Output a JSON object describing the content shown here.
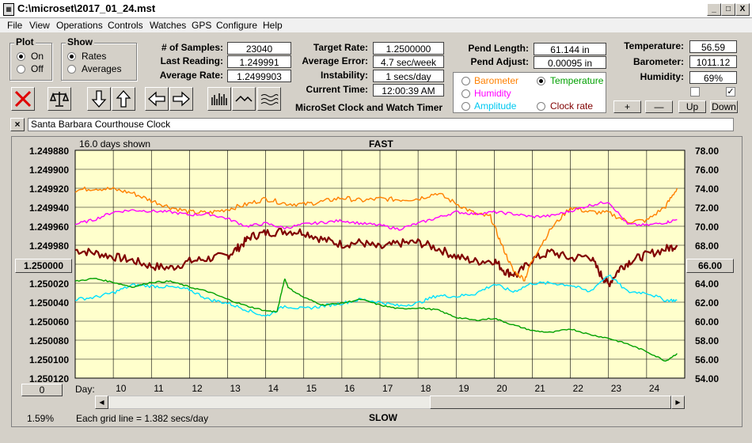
{
  "window": {
    "title": "C:\\microset\\2017_01_24.mst",
    "btn_min": "_",
    "btn_max": "□",
    "btn_close": "X"
  },
  "menu": [
    "File",
    "View",
    "Operations",
    "Controls",
    "Watches",
    "GPS",
    "Configure",
    "Help"
  ],
  "plot_group": {
    "title": "Plot",
    "on": "On",
    "off": "Off",
    "selected": "On"
  },
  "show_group": {
    "title": "Show",
    "rates": "Rates",
    "averages": "Averages",
    "selected": "Rates"
  },
  "stats": {
    "samples_label": "# of Samples:",
    "samples": "23040",
    "last_label": "Last Reading:",
    "last": "1.249991",
    "avg_rate_label": "Average Rate:",
    "avg_rate": "1.2499903",
    "target_label": "Target Rate:",
    "target": "1.2500000",
    "avg_err_label": "Average Error:",
    "avg_err": "4.7 sec/week",
    "instab_label": "Instability:",
    "instab": "1 secs/day",
    "time_label": "Current Time:",
    "time": "12:00:39 AM",
    "pend_len_label": "Pend Length:",
    "pend_len": "61.144 in",
    "pend_adj_label": "Pend Adjust:",
    "pend_adj": "0.00095 in",
    "temp_label": "Temperature:",
    "temp": "56.59",
    "baro_label": "Barometer:",
    "baro": "1011.12",
    "hum_label": "Humidity:",
    "hum": "69%"
  },
  "app_caption": "MicroSet Clock and Watch Timer",
  "sensor_choice": {
    "barometer": "Barometer",
    "temperature": "Temperature",
    "humidity": "Humidity",
    "amplitude": "Amplitude",
    "clock_rate": "Clock rate",
    "selected": "Temperature"
  },
  "small_buttons": {
    "plus": "+",
    "minus": "—",
    "up": "Up",
    "down": "Down"
  },
  "checkboxes": {
    "left_checked": false,
    "right_checked": true,
    "right_mark": "✓"
  },
  "clock_name": "Santa Barbara Courthouse Clock",
  "clock_close": "×",
  "chart_header": {
    "days_shown": "16.0 days shown",
    "top": "FAST",
    "bottom": "SLOW"
  },
  "left_button": "1.250000",
  "right_button": "66.00",
  "zero_button": "0",
  "footer": {
    "percent": "1.59%",
    "grid_note": "Each grid line = 1.382 secs/day",
    "day_label": "Day:"
  },
  "colors": {
    "plot_bg": "#ffffcc",
    "rate": "#800000",
    "temperature": "#ff8000",
    "humidity": "#ff00ff",
    "amplitude": "#00e0ff",
    "barometer": "#00a000"
  },
  "chart_data": {
    "type": "line",
    "x_axis": {
      "label": "Day:",
      "ticks": [
        10,
        11,
        12,
        13,
        14,
        15,
        16,
        17,
        18,
        19,
        20,
        21,
        22,
        23,
        24
      ],
      "range": [
        9,
        25
      ]
    },
    "y_left": {
      "ticks": [
        "1.249880",
        "1.249900",
        "1.249920",
        "1.249940",
        "1.249960",
        "1.249980",
        "1.250000",
        "1.250020",
        "1.250040",
        "1.250060",
        "1.250080",
        "1.250100",
        "1.250120"
      ],
      "range": [
        1.24988,
        1.25012
      ],
      "inverted": true
    },
    "y_right": {
      "ticks": [
        "78.00",
        "76.00",
        "74.00",
        "72.00",
        "70.00",
        "68.00",
        "66.00",
        "64.00",
        "62.00",
        "60.00",
        "58.00",
        "56.00",
        "54.00"
      ],
      "range": [
        54,
        78
      ]
    },
    "grid": true,
    "series": [
      {
        "key": "rate",
        "x": [
          9.0,
          9.5,
          10.0,
          10.5,
          11.0,
          11.5,
          12.0,
          12.5,
          13.0,
          13.3,
          13.6,
          14.0,
          14.5,
          15.0,
          15.5,
          16.0,
          16.5,
          17.0,
          17.5,
          18.0,
          18.5,
          19.0,
          19.5,
          20.0,
          20.3,
          20.6,
          21.0,
          21.5,
          22.0,
          22.5,
          22.8,
          23.0,
          23.3,
          23.6,
          24.0,
          24.5,
          24.8
        ],
        "y": [
          67.5,
          67.2,
          66.8,
          66.4,
          65.8,
          65.6,
          66.3,
          66.6,
          66.9,
          67.8,
          68.9,
          69.3,
          69.5,
          69.4,
          68.6,
          68.1,
          68.3,
          67.7,
          68.2,
          68.3,
          67.7,
          66.8,
          66.3,
          66.4,
          65.2,
          64.9,
          66.5,
          67.3,
          66.6,
          66.9,
          64.9,
          63.9,
          65.6,
          66.4,
          67.0,
          67.6,
          68.0
        ]
      },
      {
        "key": "temperature",
        "x": [
          9.0,
          9.5,
          10.0,
          10.5,
          11.0,
          11.5,
          12.0,
          12.5,
          13.0,
          13.5,
          14.0,
          14.5,
          15.0,
          15.5,
          16.0,
          16.5,
          17.0,
          17.5,
          18.0,
          18.5,
          19.0,
          19.5,
          19.9,
          20.2,
          20.5,
          20.8,
          21.0,
          21.5,
          22.0,
          22.5,
          23.0,
          23.5,
          24.0,
          24.5,
          24.8
        ],
        "y": [
          73.8,
          74.0,
          73.9,
          73.5,
          72.7,
          72.0,
          71.5,
          71.4,
          71.8,
          72.3,
          72.9,
          72.4,
          72.3,
          72.6,
          73.0,
          72.7,
          72.9,
          72.8,
          72.9,
          73.5,
          72.4,
          71.3,
          71.0,
          68.0,
          65.3,
          64.4,
          66.5,
          69.8,
          72.0,
          71.5,
          71.4,
          70.5,
          70.6,
          72.1,
          74.0
        ]
      },
      {
        "key": "humidity",
        "x": [
          9.0,
          9.5,
          10.0,
          10.5,
          11.0,
          11.5,
          12.0,
          12.5,
          13.0,
          13.5,
          14.0,
          14.5,
          15.0,
          15.5,
          16.0,
          16.5,
          17.0,
          17.5,
          18.0,
          18.5,
          19.0,
          19.5,
          20.0,
          20.5,
          21.0,
          21.5,
          22.0,
          22.5,
          23.0,
          23.5,
          24.0,
          24.5,
          24.8
        ],
        "y": [
          70.2,
          70.7,
          71.5,
          71.7,
          71.6,
          71.5,
          71.2,
          71.3,
          70.8,
          70.0,
          70.3,
          69.8,
          70.2,
          70.4,
          70.6,
          70.3,
          70.1,
          69.7,
          70.3,
          70.9,
          71.5,
          71.3,
          71.5,
          71.3,
          71.0,
          71.1,
          71.6,
          72.2,
          72.6,
          70.2,
          70.1,
          70.4,
          70.7
        ]
      },
      {
        "key": "amplitude",
        "x": [
          9.0,
          9.5,
          10.0,
          10.5,
          11.0,
          11.5,
          12.0,
          12.5,
          13.0,
          13.5,
          14.0,
          14.5,
          15.0,
          15.5,
          16.0,
          16.5,
          17.0,
          17.5,
          18.0,
          18.5,
          19.0,
          19.5,
          20.0,
          20.5,
          21.0,
          21.5,
          22.0,
          22.5,
          23.0,
          23.5,
          24.0,
          24.5,
          24.8
        ],
        "y": [
          62.3,
          62.5,
          63.0,
          63.8,
          63.7,
          63.6,
          63.3,
          62.3,
          61.9,
          61.2,
          60.5,
          61.6,
          61.3,
          61.6,
          61.9,
          62.3,
          62.0,
          61.6,
          61.9,
          62.7,
          62.6,
          62.9,
          63.9,
          63.1,
          64.0,
          64.0,
          63.8,
          63.1,
          64.9,
          63.1,
          63.0,
          62.2,
          62.2
        ]
      },
      {
        "key": "barometer",
        "x": [
          9.0,
          9.5,
          10.0,
          10.5,
          11.0,
          11.5,
          12.0,
          12.5,
          13.0,
          13.5,
          14.0,
          14.3,
          14.5,
          14.6,
          15.0,
          15.5,
          16.0,
          16.5,
          17.0,
          17.5,
          18.0,
          18.5,
          19.0,
          19.5,
          20.0,
          20.5,
          21.0,
          21.5,
          22.0,
          22.5,
          23.0,
          23.5,
          24.0,
          24.5,
          24.8
        ],
        "y": [
          64.2,
          64.5,
          64.1,
          63.6,
          64.1,
          64.2,
          63.6,
          63.1,
          62.3,
          61.6,
          61.1,
          61.0,
          64.5,
          63.5,
          62.5,
          61.7,
          61.9,
          62.3,
          61.7,
          61.3,
          61.4,
          61.2,
          60.4,
          60.1,
          60.3,
          59.6,
          59.0,
          58.8,
          59.2,
          58.6,
          58.2,
          57.6,
          56.8,
          55.8,
          56.6
        ]
      }
    ]
  }
}
